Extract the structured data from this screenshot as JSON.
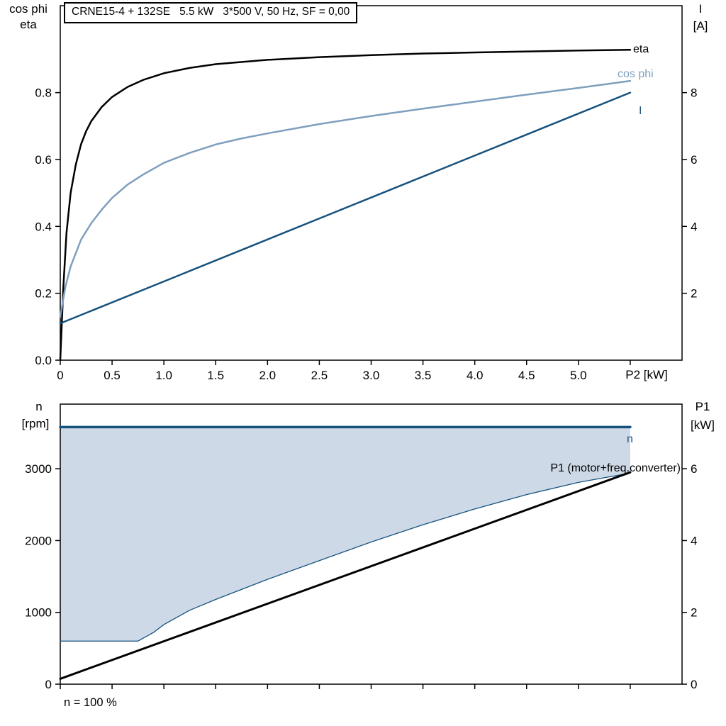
{
  "header": {
    "title": "CRNE15-4 + 132SE   5.5 kW   3*500 V, 50 Hz, SF = 0,00"
  },
  "labels": {
    "top_left_1": "cos phi",
    "top_left_2": "eta",
    "top_right_1": "I",
    "top_right_2": "[A]",
    "x_axis_label": "P2 [kW]",
    "eta_curve": "eta",
    "cosphi_curve": "cos phi",
    "current_curve": "I",
    "bottom_left_1": "n",
    "bottom_left_2": "[rpm]",
    "bottom_right_1": "P1",
    "bottom_right_2": "[kW]",
    "n_curve": "n",
    "p1_curve": "P1 (motor+freq.converter)",
    "footnote": "n = 100 %"
  },
  "colors": {
    "eta": "#000000",
    "cos_phi": "#7f9fbe",
    "current": "#17527e",
    "n": "#17527e",
    "p1": "#000000",
    "band_fill": "#cdd9e6",
    "axis": "#000000"
  },
  "chart_data": [
    {
      "type": "line",
      "title": "CRNE15-4 + 132SE   5.5 kW   3*500 V, 50 Hz, SF = 0,00",
      "x_axis": {
        "label": "P2 [kW]",
        "lim": [
          0,
          6.0
        ],
        "ticks": [
          0,
          0.5,
          1.0,
          1.5,
          2.0,
          2.5,
          3.0,
          3.5,
          4.0,
          4.5,
          5.0,
          5.5
        ],
        "tick_labels": [
          "0",
          "0.5",
          "1.0",
          "1.5",
          "2.0",
          "2.5",
          "3.0",
          "3.5",
          "4.0",
          "4.5",
          "5.0",
          ""
        ]
      },
      "y_left": {
        "label": "cos phi / eta",
        "lim": [
          0,
          1.06
        ],
        "ticks": [
          0.0,
          0.2,
          0.4,
          0.6,
          0.8
        ],
        "tick_labels": [
          "0.0",
          "0.2",
          "0.4",
          "0.6",
          "0.8"
        ]
      },
      "y_right": {
        "label": "I [A]",
        "lim": [
          0,
          10.6
        ],
        "ticks": [
          2,
          4,
          6,
          8
        ],
        "tick_labels": [
          "2",
          "4",
          "6",
          "8"
        ]
      },
      "legend_position": "right-inside",
      "grid": false,
      "series": [
        {
          "name": "eta",
          "axis": "left",
          "color": "#000000",
          "width": 2.5,
          "x": [
            0,
            0.03,
            0.06,
            0.1,
            0.15,
            0.2,
            0.25,
            0.3,
            0.4,
            0.5,
            0.65,
            0.8,
            1.0,
            1.25,
            1.5,
            2.0,
            2.5,
            3.0,
            3.5,
            4.0,
            4.5,
            5.0,
            5.5
          ],
          "y": [
            0,
            0.22,
            0.38,
            0.5,
            0.585,
            0.645,
            0.685,
            0.715,
            0.757,
            0.787,
            0.817,
            0.838,
            0.858,
            0.874,
            0.885,
            0.898,
            0.906,
            0.912,
            0.917,
            0.92,
            0.923,
            0.926,
            0.928
          ]
        },
        {
          "name": "cos phi",
          "axis": "left",
          "color": "#7f9fbe",
          "width": 2.5,
          "x": [
            0,
            0.05,
            0.1,
            0.2,
            0.3,
            0.4,
            0.5,
            0.65,
            0.8,
            1.0,
            1.25,
            1.5,
            1.75,
            2.0,
            2.5,
            3.0,
            3.5,
            4.0,
            4.5,
            5.0,
            5.5
          ],
          "y": [
            0.13,
            0.22,
            0.28,
            0.36,
            0.41,
            0.45,
            0.485,
            0.525,
            0.555,
            0.59,
            0.62,
            0.645,
            0.663,
            0.678,
            0.706,
            0.73,
            0.752,
            0.773,
            0.794,
            0.814,
            0.835
          ]
        },
        {
          "name": "I",
          "axis": "right",
          "color": "#17527e",
          "width": 2.5,
          "x": [
            0,
            5.5
          ],
          "y": [
            1.1,
            8.0
          ]
        }
      ]
    },
    {
      "type": "line",
      "title": "",
      "x_axis": {
        "label": "",
        "lim": [
          0,
          6.0
        ],
        "ticks": [
          0,
          0.5,
          1.0,
          1.5,
          2.0,
          2.5,
          3.0,
          3.5,
          4.0,
          4.5,
          5.0,
          5.5
        ],
        "tick_labels": []
      },
      "y_left": {
        "label": "n [rpm]",
        "lim": [
          0,
          3900
        ],
        "ticks": [
          0,
          1000,
          2000,
          3000
        ],
        "tick_labels": [
          "0",
          "1000",
          "2000",
          "3000"
        ]
      },
      "y_right": {
        "label": "P1 [kW]",
        "lim": [
          0,
          7.8
        ],
        "ticks": [
          0,
          2,
          4,
          6
        ],
        "tick_labels": [
          "0",
          "2",
          "4",
          "6"
        ]
      },
      "grid": false,
      "band": {
        "name": "speed-range",
        "fill": "#cdd9e6",
        "x": [
          0,
          0.75,
          0.9,
          1.0,
          1.25,
          1.5,
          2.0,
          2.5,
          3.0,
          3.5,
          4.0,
          4.5,
          5.0,
          5.5
        ],
        "upper": [
          3580,
          3580,
          3580,
          3580,
          3580,
          3580,
          3580,
          3580,
          3580,
          3580,
          3580,
          3580,
          3580,
          3580
        ],
        "lower": [
          600,
          600,
          720,
          830,
          1030,
          1180,
          1460,
          1720,
          1980,
          2220,
          2440,
          2640,
          2810,
          2940
        ]
      },
      "series": [
        {
          "name": "min speed boundary",
          "axis": "left",
          "color": "#17527e",
          "width": 1.3,
          "x": [
            0,
            0.75,
            0.9,
            1.0,
            1.25,
            1.5,
            2.0,
            2.5,
            3.0,
            3.5,
            4.0,
            4.5,
            5.0,
            5.5
          ],
          "y": [
            600,
            600,
            720,
            830,
            1030,
            1180,
            1460,
            1720,
            1980,
            2220,
            2440,
            2640,
            2810,
            2940
          ]
        },
        {
          "name": "n",
          "axis": "left",
          "color": "#17527e",
          "width": 3.5,
          "x": [
            0,
            5.5
          ],
          "y": [
            3580,
            3580
          ]
        },
        {
          "name": "P1 (motor+freq.converter)",
          "axis": "right",
          "color": "#000000",
          "width": 3,
          "x": [
            0,
            5.5
          ],
          "y": [
            0.15,
            5.9
          ]
        }
      ],
      "footnote": "n = 100 %"
    }
  ]
}
